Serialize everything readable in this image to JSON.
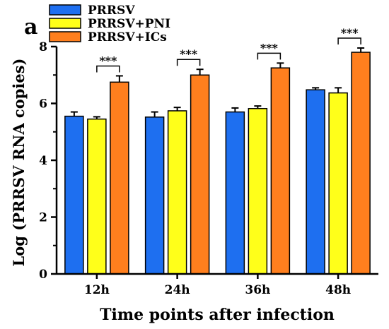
{
  "panel_label": "a",
  "chart_data": {
    "type": "bar",
    "xlabel": "Time points after infection",
    "ylabel": "Log (PRRSV RNA copies)",
    "ylim": [
      0,
      8
    ],
    "yticks": [
      0,
      2,
      4,
      6,
      8
    ],
    "categories": [
      "12h",
      "24h",
      "36h",
      "48h"
    ],
    "series": [
      {
        "name": "PRRSV",
        "color": "#1e6ff0",
        "values": [
          5.55,
          5.52,
          5.7,
          6.48
        ],
        "errors": [
          0.15,
          0.18,
          0.14,
          0.07
        ]
      },
      {
        "name": "PRRSV+PNI",
        "color": "#ffff1a",
        "values": [
          5.45,
          5.74,
          5.82,
          6.37
        ],
        "errors": [
          0.08,
          0.12,
          0.09,
          0.18
        ]
      },
      {
        "name": "PRRSV+ICs",
        "color": "#ff7f1e",
        "values": [
          6.75,
          7.0,
          7.25,
          7.8
        ],
        "errors": [
          0.22,
          0.2,
          0.17,
          0.15
        ]
      }
    ],
    "annotations": [
      "***",
      "***",
      "***",
      "***"
    ],
    "legend_position": "top-left",
    "grid": false
  }
}
